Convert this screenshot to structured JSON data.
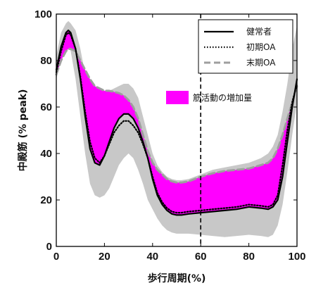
{
  "chart_data": {
    "type": "line",
    "xlabel": "歩行周期(%)",
    "ylabel": "中殿筋 (% peak)",
    "xlim": [
      0,
      100
    ],
    "ylim": [
      0,
      100
    ],
    "x_ticks": [
      "0",
      "20",
      "40",
      "60",
      "80",
      "100"
    ],
    "y_ticks": [
      "0",
      "20",
      "40",
      "60",
      "80",
      "100"
    ],
    "grid": false,
    "legend_position": "top-right",
    "vertical_line_x": 60,
    "x": [
      0,
      2,
      4,
      5,
      6,
      8,
      10,
      12,
      14,
      16,
      18,
      20,
      22,
      24,
      26,
      28,
      30,
      32,
      34,
      36,
      38,
      40,
      42,
      44,
      46,
      48,
      50,
      52,
      55,
      60,
      65,
      70,
      75,
      80,
      85,
      88,
      90,
      92,
      94,
      96,
      98,
      100
    ],
    "series": [
      {
        "name": "健常者",
        "style": "solid",
        "color": "#000000",
        "values": [
          76,
          86,
          92,
          93,
          92,
          85,
          72,
          56,
          42,
          36,
          35,
          39,
          45,
          51,
          55,
          57,
          57,
          55,
          51,
          45,
          38,
          29,
          22,
          18,
          15.5,
          14,
          13.5,
          13.5,
          14,
          14.5,
          15,
          15.5,
          16,
          17,
          16.5,
          16,
          17,
          20,
          30,
          45,
          60,
          72
        ]
      },
      {
        "name": "初期OA",
        "style": "dotted",
        "color": "#000000",
        "values": [
          75,
          84,
          91,
          92,
          91,
          85,
          73,
          58,
          45,
          38,
          36,
          39,
          44,
          49,
          52,
          54,
          54,
          52,
          49,
          44,
          38,
          30,
          23,
          19,
          16.5,
          15,
          14.5,
          14.5,
          15,
          15.5,
          16,
          16.5,
          17,
          18,
          17.5,
          17,
          18,
          22,
          35,
          50,
          62,
          70
        ]
      },
      {
        "name": "末期OA",
        "style": "dashed",
        "color": "#9e9e9e",
        "values": [
          74,
          80,
          84,
          85,
          85,
          84,
          80,
          76,
          72,
          69,
          68,
          67,
          67,
          66.5,
          66,
          65,
          63,
          60,
          55,
          48,
          41,
          36,
          33,
          31,
          29,
          28,
          27.5,
          27.5,
          28,
          30,
          31.5,
          32.5,
          33,
          33.5,
          35,
          36,
          38,
          42,
          48,
          55,
          62,
          69
        ]
      }
    ],
    "variability_band": {
      "color": "#c8c8c8",
      "upper": [
        82,
        92,
        96,
        97,
        96,
        93,
        85,
        74,
        68,
        66,
        65,
        66,
        67,
        68,
        69,
        70,
        70,
        68,
        64,
        56,
        48,
        40,
        35,
        32,
        30,
        29,
        28.5,
        28.5,
        29,
        31,
        33,
        34,
        35,
        36,
        38,
        40,
        43,
        48,
        58,
        70,
        85,
        95
      ],
      "lower": [
        72,
        80,
        85,
        86,
        84,
        72,
        56,
        40,
        27,
        22,
        21,
        22,
        25,
        30,
        35,
        38,
        40,
        38,
        33,
        27,
        20,
        16,
        12,
        9,
        7,
        6,
        5.5,
        5.5,
        5.5,
        5,
        4.5,
        4,
        4.5,
        5,
        4.5,
        4,
        5,
        9,
        18,
        32,
        48,
        62
      ]
    },
    "annotation": {
      "label": "筋活動の増加量",
      "color": "#ff00ff"
    }
  }
}
